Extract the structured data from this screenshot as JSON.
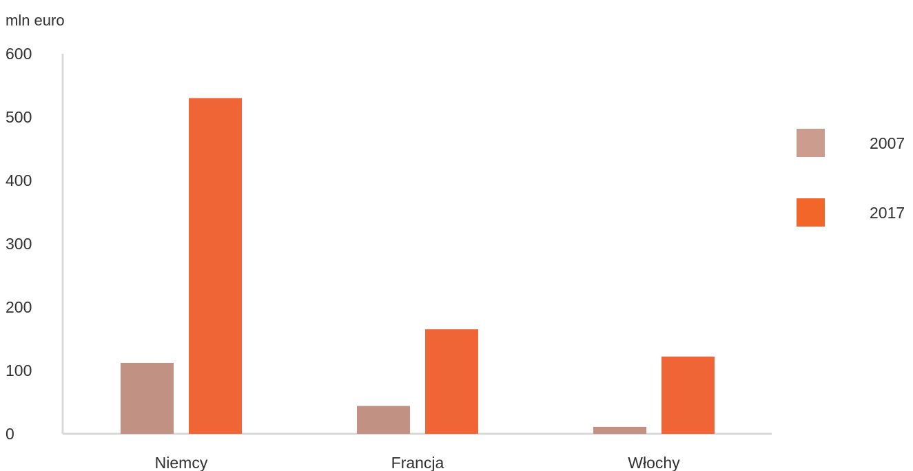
{
  "chart_data": {
    "type": "bar",
    "ylabel": "mln euro",
    "categories": [
      "Niemcy",
      "Francja",
      "Włochy"
    ],
    "series": [
      {
        "name": "2007",
        "values": [
          112,
          44,
          11
        ],
        "color": "#c19284"
      },
      {
        "name": "2017",
        "values": [
          530,
          165,
          122
        ],
        "color": "#f06535"
      }
    ],
    "ylim": [
      0,
      600
    ],
    "yticks": [
      "0",
      "100",
      "200",
      "300",
      "400",
      "500",
      "600"
    ],
    "grid": false,
    "legend": "right",
    "legend_colors": [
      "#cc9c8f",
      "#f26629"
    ],
    "axis_color": "#d9d9d9"
  }
}
